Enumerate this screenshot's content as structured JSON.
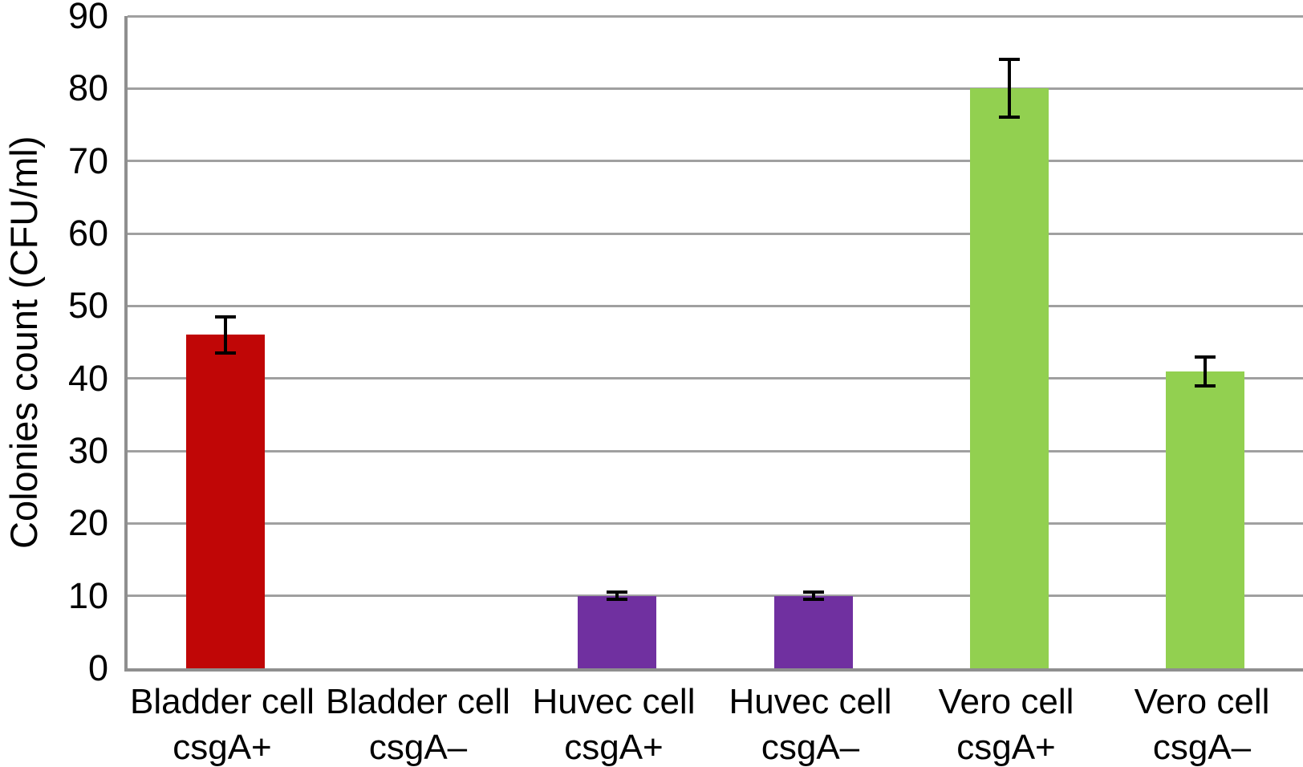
{
  "figure": {
    "background": "#ffffff"
  },
  "chart_data": {
    "type": "bar",
    "title": "",
    "xlabel": "",
    "ylabel": "Colonies count (CFU/ml)",
    "ylim": [
      0,
      90
    ],
    "yticks": [
      0,
      10,
      20,
      30,
      40,
      50,
      60,
      70,
      80,
      90
    ],
    "grid": true,
    "legend_position": "none",
    "categories": [
      "Bladder cell\ncsgA+",
      "Bladder cell\ncsgA–",
      "Huvec cell\ncsgA+",
      "Huvec cell\ncsgA–",
      "Vero cell\ncsgA+",
      "Vero cell\ncsgA–"
    ],
    "values": [
      46,
      0,
      10,
      10,
      80,
      41
    ],
    "errors": [
      2.5,
      0,
      0.5,
      0.5,
      4,
      2
    ],
    "bar_colors": [
      "#c00606",
      "#c00606",
      "#7030a0",
      "#7030a0",
      "#92d050",
      "#92d050"
    ],
    "colors": {
      "gridline": "#a0a0a0",
      "axis": "#8f8f8f",
      "error_bar": "#000000",
      "text": "#000000"
    }
  }
}
